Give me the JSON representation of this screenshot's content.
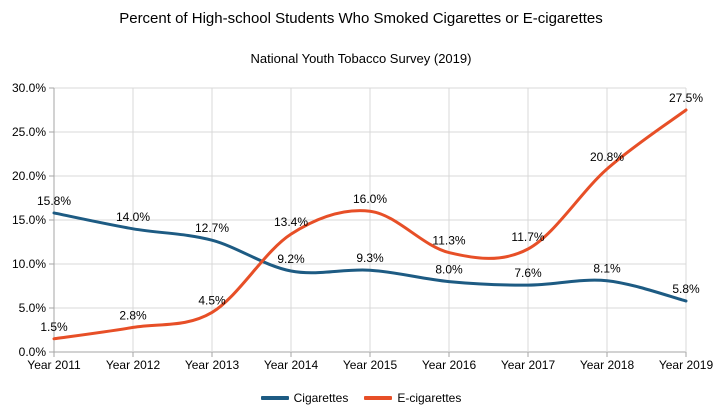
{
  "chart_data": {
    "type": "line",
    "title": "Percent of High-school Students Who Smoked Cigarettes or E-cigarettes",
    "subtitle": "National Youth Tobacco Survey (2019)",
    "categories": [
      "Year 2011",
      "Year 2012",
      "Year 2013",
      "Year 2014",
      "Year 2015",
      "Year 2016",
      "Year 2017",
      "Year 2018",
      "Year 2019"
    ],
    "series": [
      {
        "name": "Cigarettes",
        "color": "#1d5b83",
        "values": [
          15.8,
          14.0,
          12.7,
          9.2,
          9.3,
          8.0,
          7.6,
          8.1,
          5.8
        ]
      },
      {
        "name": "E-cigarettes",
        "color": "#e74f27",
        "values": [
          1.5,
          2.8,
          4.5,
          13.4,
          16.0,
          11.3,
          11.7,
          20.8,
          27.5
        ]
      }
    ],
    "xlabel": "",
    "ylabel": "",
    "ylim": [
      0,
      30
    ],
    "ytick_step": 5,
    "ytick_format": "percent_one_decimal",
    "data_labels": true,
    "smooth_lines": true,
    "grid": true,
    "legend_position": "bottom",
    "grid_color": "#d9d9d9",
    "axis_color": "#a6a6a6",
    "text_color": "#000000",
    "background_color": "#ffffff"
  }
}
